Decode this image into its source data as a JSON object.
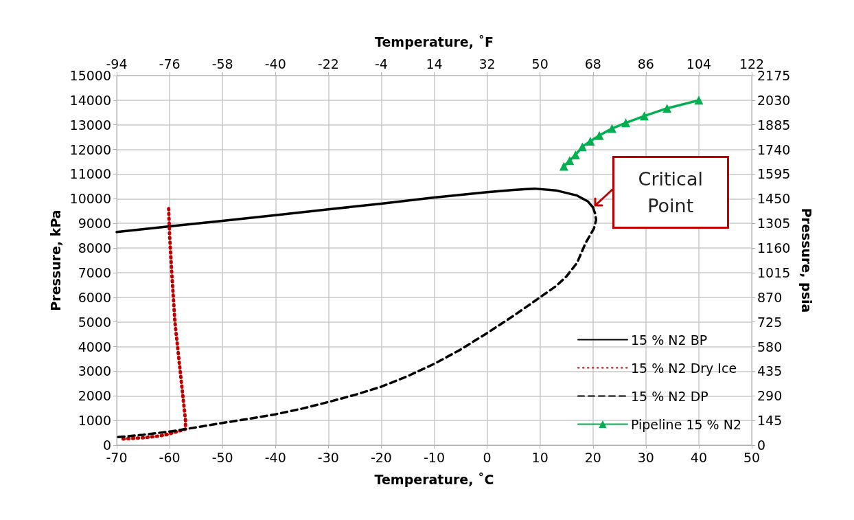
{
  "chart_data": {
    "type": "line",
    "xlabel": "Temperature, ˚C",
    "x2label": "Temperature, ˚F",
    "ylabel": "Pressure, kPa",
    "y2label": "Pressure, psia",
    "xlim": [
      -70,
      50
    ],
    "xticks": [
      -70,
      -60,
      -50,
      -40,
      -30,
      -20,
      -10,
      0,
      10,
      20,
      30,
      40,
      50
    ],
    "x2lim": [
      -94,
      122
    ],
    "x2ticks": [
      -94,
      -76,
      -58,
      -40,
      -22,
      -4,
      14,
      32,
      50,
      68,
      86,
      104,
      122
    ],
    "ylim": [
      0,
      15000
    ],
    "yticks": [
      0,
      1000,
      2000,
      3000,
      4000,
      5000,
      6000,
      7000,
      8000,
      9000,
      10000,
      11000,
      12000,
      13000,
      14000,
      15000
    ],
    "y2lim": [
      0,
      2175
    ],
    "y2ticks": [
      0,
      145,
      290,
      435,
      580,
      725,
      870,
      1015,
      1160,
      1305,
      1450,
      1595,
      1740,
      1885,
      2030,
      2175
    ],
    "grid": true,
    "legend": "bottom right",
    "annotations": [
      {
        "text": "Critical Point",
        "x": 20,
        "y": 9650
      }
    ],
    "series": [
      {
        "name": "15 % N2 BP",
        "color": "#000000",
        "line_style": "solid",
        "marker": "none",
        "x": [
          -70,
          -60,
          -50,
          -40,
          -30,
          -20,
          -10,
          0,
          5,
          9,
          13,
          17,
          19,
          20
        ],
        "values": [
          8650,
          8880,
          9100,
          9330,
          9570,
          9800,
          10050,
          10270,
          10360,
          10410,
          10340,
          10130,
          9900,
          9650
        ]
      },
      {
        "name": "15 % N2 Dry Ice",
        "color": "#c00000",
        "line_style": "dotted",
        "marker": "none",
        "x": [
          -68.8,
          -65,
          -62,
          -60.5,
          -57,
          -57,
          -58,
          -59,
          -59.6,
          -60,
          -60.2
        ],
        "values": [
          250,
          300,
          370,
          430,
          650,
          1000,
          3000,
          5000,
          7000,
          8500,
          9700
        ]
      },
      {
        "name": "15 % N2 DP",
        "color": "#000000",
        "line_style": "dashed",
        "marker": "none",
        "x": [
          20,
          20.4,
          20.6,
          20.2,
          18.6,
          17,
          15,
          13,
          10,
          5,
          0,
          -5,
          -10,
          -15,
          -20,
          -25,
          -30,
          -35,
          -40,
          -45,
          -50,
          -55,
          -60,
          -65,
          -70
        ],
        "values": [
          9650,
          9400,
          9140,
          8800,
          8200,
          7400,
          6850,
          6450,
          6000,
          5250,
          4550,
          3880,
          3300,
          2800,
          2370,
          2040,
          1750,
          1480,
          1250,
          1070,
          900,
          720,
          550,
          420,
          320
        ]
      },
      {
        "name": "Pipeline 15 % N2",
        "color": "#00b050",
        "line_style": "solid",
        "marker": "triangle",
        "x": [
          14.5,
          15.6,
          16.7,
          18,
          19.5,
          21.2,
          23.6,
          26.2,
          29.7,
          34,
          40
        ],
        "values": [
          11320,
          11550,
          11780,
          12110,
          12340,
          12570,
          12850,
          13080,
          13360,
          13670,
          14000
        ]
      }
    ]
  }
}
